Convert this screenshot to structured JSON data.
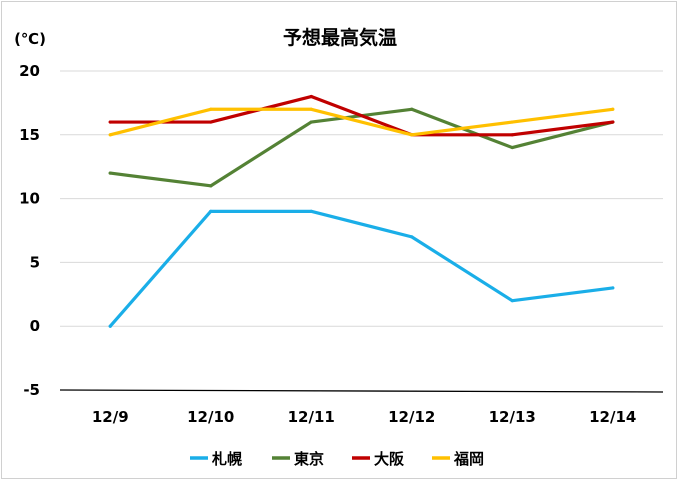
{
  "chart_data": {
    "type": "line",
    "title": "予想最高気温",
    "ylabel": "(℃)",
    "xlabel": "",
    "categories": [
      "12/9",
      "12/10",
      "12/11",
      "12/12",
      "12/13",
      "12/14"
    ],
    "ylim": [
      -5,
      20
    ],
    "yticks": [
      "20",
      "15",
      "10",
      "5",
      "0",
      "-5"
    ],
    "grid": true,
    "legend_position": "bottom",
    "series": [
      {
        "name": "札幌",
        "color": "#1AAEE8",
        "values": [
          0,
          9,
          9,
          7,
          2,
          3
        ]
      },
      {
        "name": "東京",
        "color": "#548235",
        "values": [
          12,
          11,
          16,
          17,
          14,
          16
        ]
      },
      {
        "name": "大阪",
        "color": "#C00000",
        "values": [
          16,
          16,
          18,
          15,
          15,
          16
        ]
      },
      {
        "name": "福岡",
        "color": "#FFC000",
        "values": [
          15,
          17,
          17,
          15,
          16,
          17
        ]
      }
    ]
  }
}
